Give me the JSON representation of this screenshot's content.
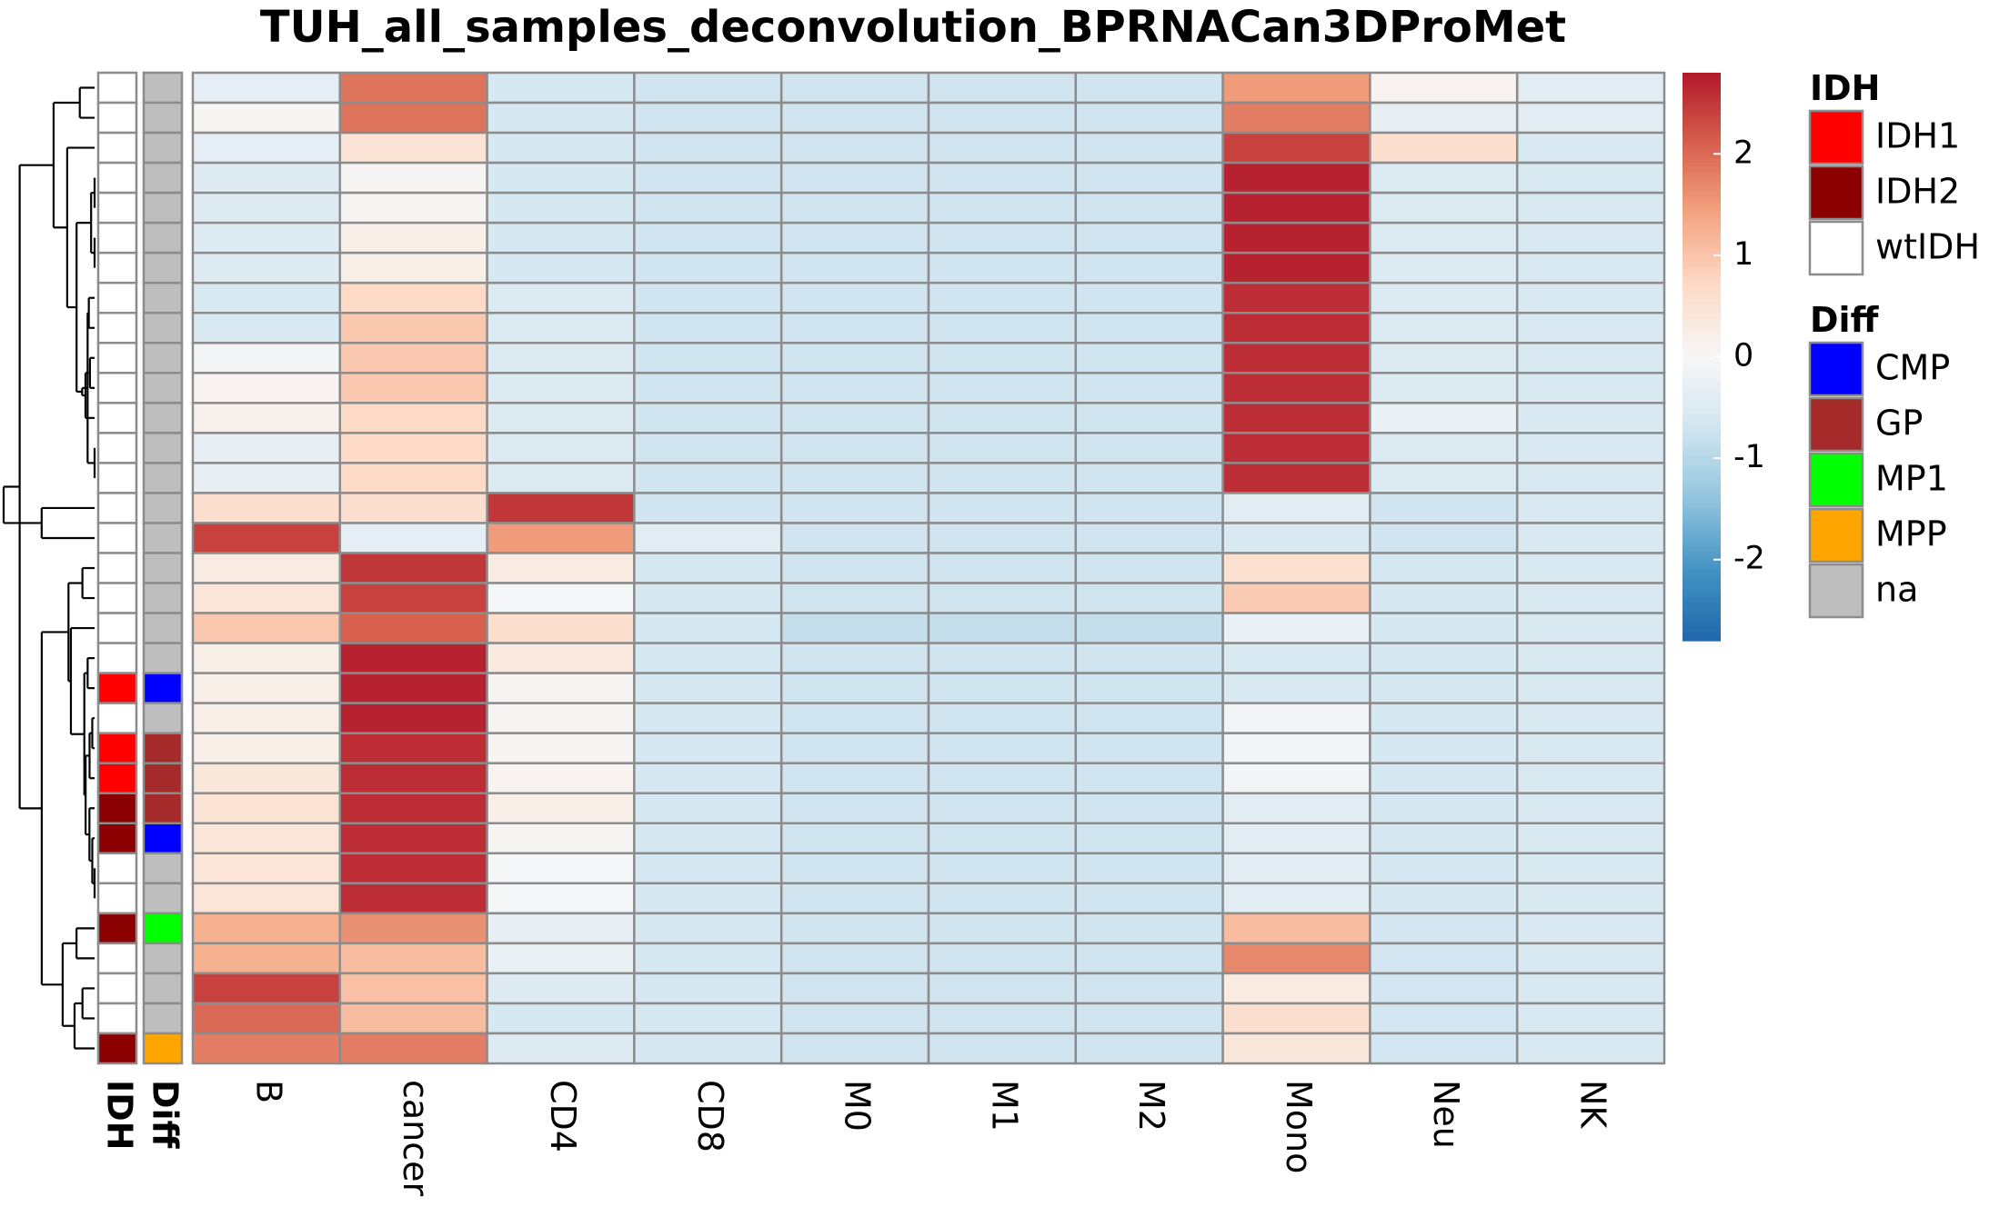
{
  "chart_data": {
    "type": "heatmap",
    "title": "TUH_all_samples_deconvolution_BPRNACan3DProMet",
    "columns": [
      "B",
      "cancer",
      "CD4",
      "CD8",
      "M0",
      "M1",
      "M2",
      "Mono",
      "Neu",
      "NK"
    ],
    "annotation_columns": [
      "IDH",
      "Diff"
    ],
    "rows": [
      {
        "IDH": "wtIDH",
        "Diff": "na",
        "values": [
          -0.35,
          1.9,
          -0.6,
          -0.7,
          -0.7,
          -0.7,
          -0.7,
          1.5,
          0.1,
          -0.4
        ]
      },
      {
        "IDH": "wtIDH",
        "Diff": "na",
        "values": [
          0.05,
          1.9,
          -0.6,
          -0.7,
          -0.7,
          -0.7,
          -0.7,
          1.8,
          -0.3,
          -0.4
        ]
      },
      {
        "IDH": "wtIDH",
        "Diff": "na",
        "values": [
          -0.35,
          0.5,
          -0.6,
          -0.7,
          -0.7,
          -0.7,
          -0.7,
          2.4,
          0.6,
          -0.55
        ]
      },
      {
        "IDH": "wtIDH",
        "Diff": "na",
        "values": [
          -0.45,
          0.05,
          -0.6,
          -0.7,
          -0.7,
          -0.7,
          -0.7,
          2.7,
          -0.5,
          -0.55
        ]
      },
      {
        "IDH": "wtIDH",
        "Diff": "na",
        "values": [
          -0.45,
          0.05,
          -0.6,
          -0.7,
          -0.7,
          -0.7,
          -0.7,
          2.7,
          -0.5,
          -0.55
        ]
      },
      {
        "IDH": "wtIDH",
        "Diff": "na",
        "values": [
          -0.45,
          0.2,
          -0.6,
          -0.7,
          -0.7,
          -0.7,
          -0.7,
          2.7,
          -0.5,
          -0.55
        ]
      },
      {
        "IDH": "wtIDH",
        "Diff": "na",
        "values": [
          -0.45,
          0.2,
          -0.6,
          -0.7,
          -0.7,
          -0.7,
          -0.7,
          2.7,
          -0.5,
          -0.55
        ]
      },
      {
        "IDH": "wtIDH",
        "Diff": "na",
        "values": [
          -0.55,
          0.7,
          -0.5,
          -0.7,
          -0.7,
          -0.7,
          -0.7,
          2.6,
          -0.5,
          -0.55
        ]
      },
      {
        "IDH": "wtIDH",
        "Diff": "na",
        "values": [
          -0.55,
          0.95,
          -0.5,
          -0.7,
          -0.7,
          -0.7,
          -0.7,
          2.6,
          -0.5,
          -0.55
        ]
      },
      {
        "IDH": "wtIDH",
        "Diff": "na",
        "values": [
          -0.1,
          0.95,
          -0.5,
          -0.7,
          -0.7,
          -0.7,
          -0.7,
          2.6,
          -0.5,
          -0.55
        ]
      },
      {
        "IDH": "wtIDH",
        "Diff": "na",
        "values": [
          0.1,
          0.95,
          -0.5,
          -0.7,
          -0.7,
          -0.7,
          -0.7,
          2.6,
          -0.5,
          -0.55
        ]
      },
      {
        "IDH": "wtIDH",
        "Diff": "na",
        "values": [
          0.15,
          0.7,
          -0.5,
          -0.7,
          -0.7,
          -0.7,
          -0.7,
          2.6,
          -0.25,
          -0.55
        ]
      },
      {
        "IDH": "wtIDH",
        "Diff": "na",
        "values": [
          -0.3,
          0.7,
          -0.5,
          -0.7,
          -0.7,
          -0.7,
          -0.7,
          2.6,
          -0.5,
          -0.55
        ]
      },
      {
        "IDH": "wtIDH",
        "Diff": "na",
        "values": [
          -0.3,
          0.7,
          -0.5,
          -0.7,
          -0.7,
          -0.7,
          -0.7,
          2.6,
          -0.5,
          -0.55
        ]
      },
      {
        "IDH": "wtIDH",
        "Diff": "na",
        "values": [
          0.6,
          0.6,
          2.5,
          -0.7,
          -0.7,
          -0.7,
          -0.7,
          -0.4,
          -0.7,
          -0.55
        ]
      },
      {
        "IDH": "wtIDH",
        "Diff": "na",
        "values": [
          2.4,
          -0.35,
          1.5,
          -0.4,
          -0.7,
          -0.7,
          -0.7,
          -0.55,
          -0.7,
          -0.55
        ]
      },
      {
        "IDH": "wtIDH",
        "Diff": "na",
        "values": [
          0.3,
          2.5,
          0.3,
          -0.6,
          -0.7,
          -0.7,
          -0.7,
          0.55,
          -0.6,
          -0.55
        ]
      },
      {
        "IDH": "wtIDH",
        "Diff": "na",
        "values": [
          0.45,
          2.4,
          -0.05,
          -0.6,
          -0.7,
          -0.7,
          -0.7,
          0.9,
          -0.6,
          -0.55
        ]
      },
      {
        "IDH": "wtIDH",
        "Diff": "na",
        "values": [
          0.95,
          2.1,
          0.6,
          -0.6,
          -0.85,
          -0.85,
          -0.85,
          -0.25,
          -0.6,
          -0.55
        ]
      },
      {
        "IDH": "wtIDH",
        "Diff": "na",
        "values": [
          0.2,
          2.7,
          0.35,
          -0.6,
          -0.7,
          -0.7,
          -0.7,
          -0.55,
          -0.6,
          -0.55
        ]
      },
      {
        "IDH": "IDH1",
        "Diff": "CMP",
        "values": [
          0.2,
          2.7,
          0.05,
          -0.6,
          -0.7,
          -0.7,
          -0.7,
          -0.55,
          -0.6,
          -0.55
        ]
      },
      {
        "IDH": "wtIDH",
        "Diff": "na",
        "values": [
          0.2,
          2.7,
          0.05,
          -0.6,
          -0.7,
          -0.7,
          -0.7,
          -0.1,
          -0.6,
          -0.55
        ]
      },
      {
        "IDH": "IDH1",
        "Diff": "GP",
        "values": [
          0.2,
          2.6,
          0.05,
          -0.6,
          -0.7,
          -0.7,
          -0.7,
          -0.1,
          -0.6,
          -0.55
        ]
      },
      {
        "IDH": "IDH1",
        "Diff": "GP",
        "values": [
          0.4,
          2.6,
          0.1,
          -0.6,
          -0.7,
          -0.7,
          -0.7,
          -0.1,
          -0.6,
          -0.55
        ]
      },
      {
        "IDH": "IDH2",
        "Diff": "GP",
        "values": [
          0.5,
          2.6,
          0.2,
          -0.6,
          -0.7,
          -0.7,
          -0.7,
          -0.4,
          -0.6,
          -0.55
        ]
      },
      {
        "IDH": "IDH2",
        "Diff": "CMP",
        "values": [
          0.45,
          2.6,
          0.05,
          -0.6,
          -0.7,
          -0.7,
          -0.7,
          -0.4,
          -0.6,
          -0.55
        ]
      },
      {
        "IDH": "wtIDH",
        "Diff": "na",
        "values": [
          0.45,
          2.6,
          -0.05,
          -0.6,
          -0.7,
          -0.7,
          -0.7,
          -0.4,
          -0.6,
          -0.55
        ]
      },
      {
        "IDH": "wtIDH",
        "Diff": "na",
        "values": [
          0.45,
          2.6,
          -0.05,
          -0.6,
          -0.7,
          -0.7,
          -0.7,
          -0.4,
          -0.6,
          -0.55
        ]
      },
      {
        "IDH": "IDH2",
        "Diff": "MP1",
        "values": [
          1.25,
          1.6,
          -0.3,
          -0.6,
          -0.7,
          -0.7,
          -0.7,
          1.1,
          -0.65,
          -0.55
        ]
      },
      {
        "IDH": "wtIDH",
        "Diff": "na",
        "values": [
          1.25,
          1.1,
          -0.25,
          -0.6,
          -0.7,
          -0.7,
          -0.7,
          1.7,
          -0.65,
          -0.55
        ]
      },
      {
        "IDH": "wtIDH",
        "Diff": "na",
        "values": [
          2.4,
          1.05,
          -0.45,
          -0.6,
          -0.7,
          -0.7,
          -0.7,
          0.3,
          -0.65,
          -0.55
        ]
      },
      {
        "IDH": "wtIDH",
        "Diff": "na",
        "values": [
          2.0,
          1.1,
          -0.6,
          -0.6,
          -0.7,
          -0.7,
          -0.7,
          0.6,
          -0.65,
          -0.55
        ]
      },
      {
        "IDH": "IDH2",
        "Diff": "MPP",
        "values": [
          1.8,
          1.8,
          -0.45,
          -0.6,
          -0.7,
          -0.7,
          -0.7,
          0.4,
          -0.65,
          -0.55
        ]
      }
    ],
    "color_scale": {
      "ticks": [
        2,
        1,
        0,
        -1,
        -2
      ],
      "colors_low_to_high": [
        "#2166ac",
        "#4393c3",
        "#92c5de",
        "#d1e5f0",
        "#f7f7f7",
        "#fddbc7",
        "#f4a582",
        "#d6604d",
        "#b2182b"
      ],
      "range": [
        -2.8,
        2.8
      ]
    },
    "legends": [
      {
        "title": "IDH",
        "items": [
          {
            "label": "IDH1",
            "color": "#ff0000"
          },
          {
            "label": "IDH2",
            "color": "#8b0000"
          },
          {
            "label": "wtIDH",
            "color": "#ffffff"
          }
        ]
      },
      {
        "title": "Diff",
        "items": [
          {
            "label": "CMP",
            "color": "#0000ff"
          },
          {
            "label": "GP",
            "color": "#a52a2a"
          },
          {
            "label": "MP1",
            "color": "#00ff00"
          },
          {
            "label": "MPP",
            "color": "#ffa500"
          },
          {
            "label": "na",
            "color": "#bebebe"
          }
        ]
      }
    ],
    "dendrogram": "rows",
    "grid": true
  }
}
